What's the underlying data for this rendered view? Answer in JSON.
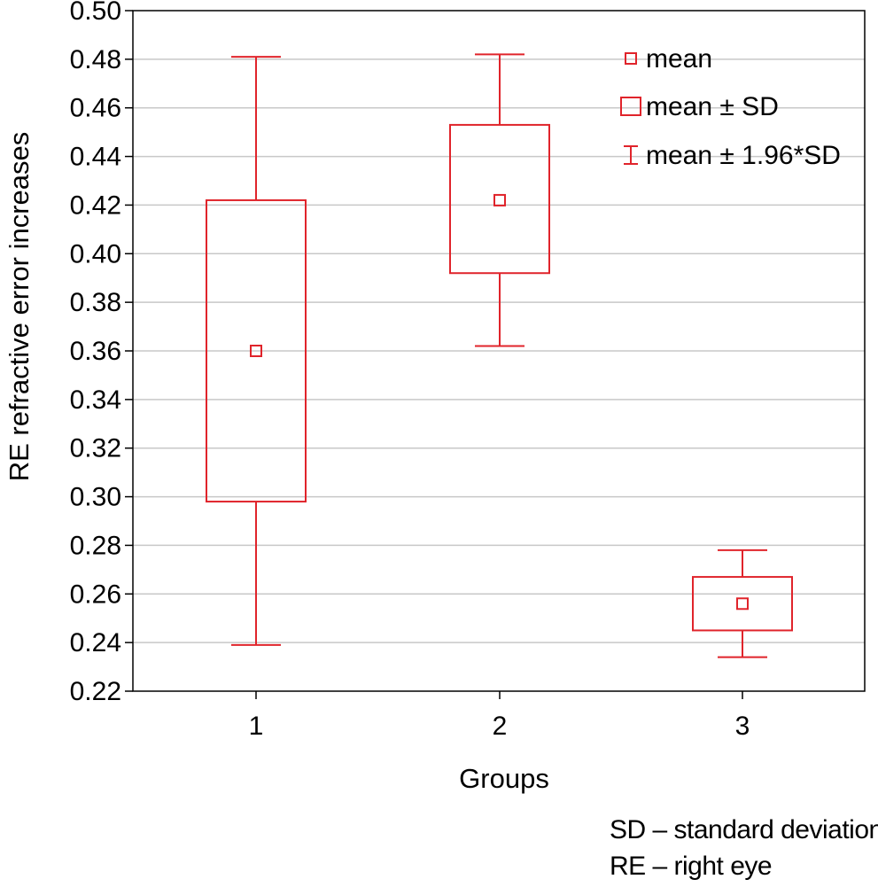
{
  "chart_data": {
    "type": "box",
    "xlabel": "Groups",
    "ylabel": "RE refractive error increases",
    "ylim": [
      0.22,
      0.5
    ],
    "yticks": [
      0.22,
      0.24,
      0.26,
      0.28,
      0.3,
      0.32,
      0.34,
      0.36,
      0.38,
      0.4,
      0.42,
      0.44,
      0.46,
      0.48,
      0.5
    ],
    "ytick_labels": [
      "0.22",
      "0.24",
      "0.26",
      "0.28",
      "0.30",
      "0.32",
      "0.34",
      "0.36",
      "0.38",
      "0.40",
      "0.42",
      "0.44",
      "0.46",
      "0.48",
      "0.50"
    ],
    "categories": [
      "1",
      "2",
      "3"
    ],
    "grid": true,
    "legend_position": "top-right",
    "legend": [
      {
        "marker": "small-square",
        "label": "mean"
      },
      {
        "marker": "box",
        "label": "mean ± SD"
      },
      {
        "marker": "whisker",
        "label": "mean ± 1.96*SD"
      }
    ],
    "groups": [
      {
        "category": "1",
        "mean": 0.36,
        "sd_low": 0.298,
        "sd_high": 0.422,
        "ci_low": 0.239,
        "ci_high": 0.481
      },
      {
        "category": "2",
        "mean": 0.422,
        "sd_low": 0.392,
        "sd_high": 0.453,
        "ci_low": 0.362,
        "ci_high": 0.482
      },
      {
        "category": "3",
        "mean": 0.256,
        "sd_low": 0.245,
        "sd_high": 0.267,
        "ci_low": 0.234,
        "ci_high": 0.278
      }
    ],
    "colors": {
      "series": "#e0242b",
      "grid": "#c8c8c8",
      "axis": "#000000"
    }
  },
  "notes": [
    "SD – standard deviation",
    "RE – right eye"
  ]
}
